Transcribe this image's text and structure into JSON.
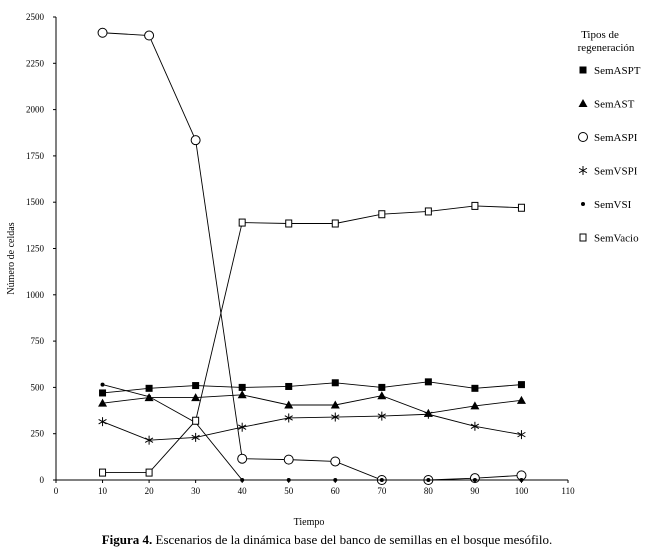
{
  "chart_data": {
    "type": "line",
    "xlabel": "Tiempo",
    "ylabel": "Número de celdas",
    "xlim": [
      0,
      110
    ],
    "ylim": [
      0,
      2500
    ],
    "xticks": [
      0,
      10,
      20,
      30,
      40,
      50,
      60,
      70,
      80,
      90,
      100,
      110
    ],
    "yticks": [
      0,
      250,
      500,
      750,
      1000,
      1250,
      1500,
      1750,
      2000,
      2250,
      2500
    ],
    "legend_title": "Tipos de regeneración",
    "legend_placement": "right",
    "x": [
      10,
      20,
      30,
      40,
      50,
      60,
      70,
      80,
      90,
      100
    ],
    "series": [
      {
        "name": "SemASPT",
        "marker": "filled-square",
        "values": [
          470,
          495,
          510,
          500,
          505,
          525,
          500,
          530,
          495,
          515
        ]
      },
      {
        "name": "SemAST",
        "marker": "filled-triangle",
        "values": [
          415,
          445,
          445,
          460,
          405,
          405,
          455,
          360,
          400,
          430
        ]
      },
      {
        "name": "SemASPI",
        "marker": "open-circle",
        "values": [
          2415,
          2400,
          1835,
          115,
          110,
          100,
          0,
          0,
          10,
          25
        ]
      },
      {
        "name": "SemVSPI",
        "marker": "asterisk",
        "values": [
          315,
          215,
          230,
          285,
          335,
          340,
          345,
          355,
          290,
          245
        ]
      },
      {
        "name": "SemVSI",
        "marker": "small-dot",
        "values": [
          515,
          450,
          310,
          0,
          0,
          0,
          0,
          0,
          0,
          0
        ]
      },
      {
        "name": "SemVacio",
        "marker": "open-square",
        "values": [
          40,
          40,
          320,
          1390,
          1385,
          1385,
          1435,
          1450,
          1480,
          1470
        ]
      }
    ]
  },
  "caption": {
    "label": "Figura 4.",
    "text": " Escenarios de la dinámica base del banco de semillas en el bosque mesófilo."
  }
}
